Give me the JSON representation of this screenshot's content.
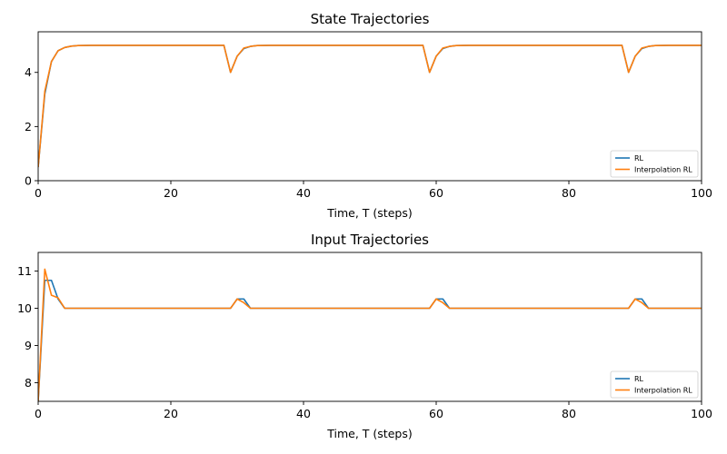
{
  "colors": {
    "rl": "#1f77b4",
    "interp": "#ff7f0e"
  },
  "chart_data": [
    {
      "type": "line",
      "title": "State Trajectories",
      "xlabel": "Time, T (steps)",
      "ylabel": "",
      "xlim": [
        0,
        100
      ],
      "ylim": [
        0,
        5.5
      ],
      "xticks": [
        0,
        20,
        40,
        60,
        80,
        100
      ],
      "yticks": [
        0,
        2,
        4
      ],
      "legend_position": "lower-right",
      "series": [
        {
          "name": "RL",
          "x": [
            0,
            1,
            2,
            3,
            4,
            5,
            6,
            8,
            28,
            29,
            30,
            31,
            32,
            33,
            35,
            58,
            59,
            60,
            61,
            62,
            63,
            65,
            88,
            89,
            90,
            91,
            92,
            93,
            95,
            100
          ],
          "y": [
            0.5,
            3.2,
            4.4,
            4.8,
            4.92,
            4.97,
            4.99,
            5.0,
            5.0,
            4.0,
            4.6,
            4.88,
            4.96,
            4.99,
            5.0,
            5.0,
            4.0,
            4.6,
            4.88,
            4.96,
            4.99,
            5.0,
            5.0,
            4.0,
            4.6,
            4.88,
            4.96,
            4.99,
            5.0,
            5.0
          ]
        },
        {
          "name": "Interpolation RL",
          "x": [
            0,
            1,
            2,
            3,
            4,
            5,
            6,
            8,
            28,
            29,
            30,
            31,
            32,
            33,
            35,
            58,
            59,
            60,
            61,
            62,
            63,
            65,
            88,
            89,
            90,
            91,
            92,
            93,
            95,
            100
          ],
          "y": [
            0.5,
            3.3,
            4.4,
            4.8,
            4.92,
            4.97,
            4.99,
            5.0,
            5.0,
            4.0,
            4.6,
            4.9,
            4.96,
            4.99,
            5.0,
            5.0,
            4.0,
            4.6,
            4.9,
            4.96,
            4.99,
            5.0,
            5.0,
            4.0,
            4.6,
            4.9,
            4.96,
            4.99,
            5.0,
            5.0
          ]
        }
      ]
    },
    {
      "type": "line",
      "title": "Input Trajectories",
      "xlabel": "Time, T (steps)",
      "ylabel": "",
      "xlim": [
        0,
        100
      ],
      "ylim": [
        7.5,
        11.5
      ],
      "xticks": [
        0,
        20,
        40,
        60,
        80,
        100
      ],
      "yticks": [
        8,
        9,
        10,
        11
      ],
      "legend_position": "lower-right",
      "series": [
        {
          "name": "RL",
          "x": [
            0,
            1,
            2,
            3,
            4,
            5,
            29,
            30,
            31,
            32,
            59,
            60,
            61,
            62,
            89,
            90,
            91,
            92,
            100
          ],
          "y": [
            7.5,
            10.75,
            10.75,
            10.25,
            10.0,
            10.0,
            10.0,
            10.25,
            10.25,
            10.0,
            10.0,
            10.25,
            10.25,
            10.0,
            10.0,
            10.25,
            10.25,
            10.0,
            10.0
          ]
        },
        {
          "name": "Interpolation RL",
          "x": [
            0,
            1,
            2,
            3,
            4,
            5,
            29,
            30,
            31,
            32,
            59,
            60,
            61,
            62,
            89,
            90,
            91,
            92,
            100
          ],
          "y": [
            7.5,
            11.05,
            10.35,
            10.28,
            10.0,
            10.0,
            10.0,
            10.25,
            10.15,
            10.0,
            10.0,
            10.25,
            10.15,
            10.0,
            10.0,
            10.25,
            10.15,
            10.0,
            10.0
          ]
        }
      ]
    }
  ]
}
